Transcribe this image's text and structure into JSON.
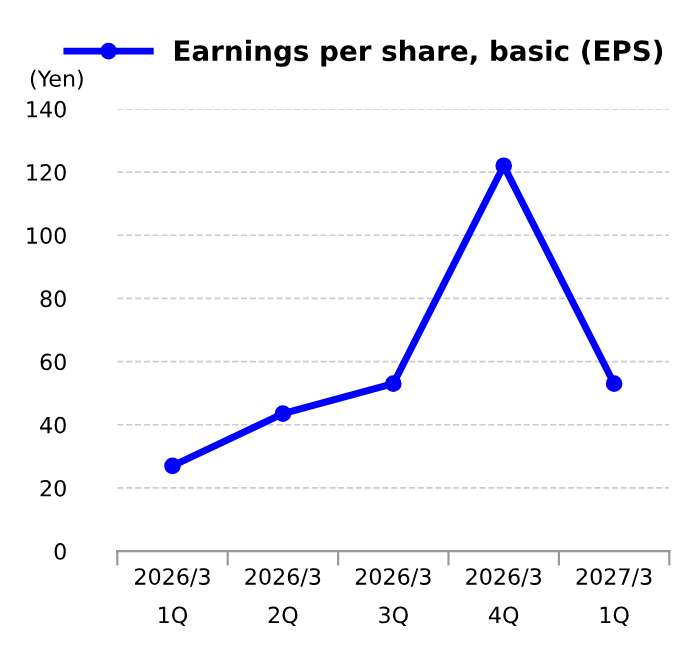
{
  "chart_data": {
    "type": "line",
    "ylabel": "(Yen)",
    "categories": [
      "2026/3\n1Q",
      "2026/3\n2Q",
      "2026/3\n3Q",
      "2026/3\n4Q",
      "2027/3\n1Q"
    ],
    "series": [
      {
        "name": "Earnings per share, basic (EPS)",
        "color": "#0000ff",
        "values": [
          27,
          43.5,
          53,
          122,
          53
        ]
      }
    ],
    "ylim": [
      0,
      140
    ],
    "yticks": [
      0,
      20,
      40,
      60,
      80,
      100,
      120,
      140
    ],
    "grid": "y",
    "legend": "top",
    "marker": "circle",
    "line_style": "solid"
  }
}
